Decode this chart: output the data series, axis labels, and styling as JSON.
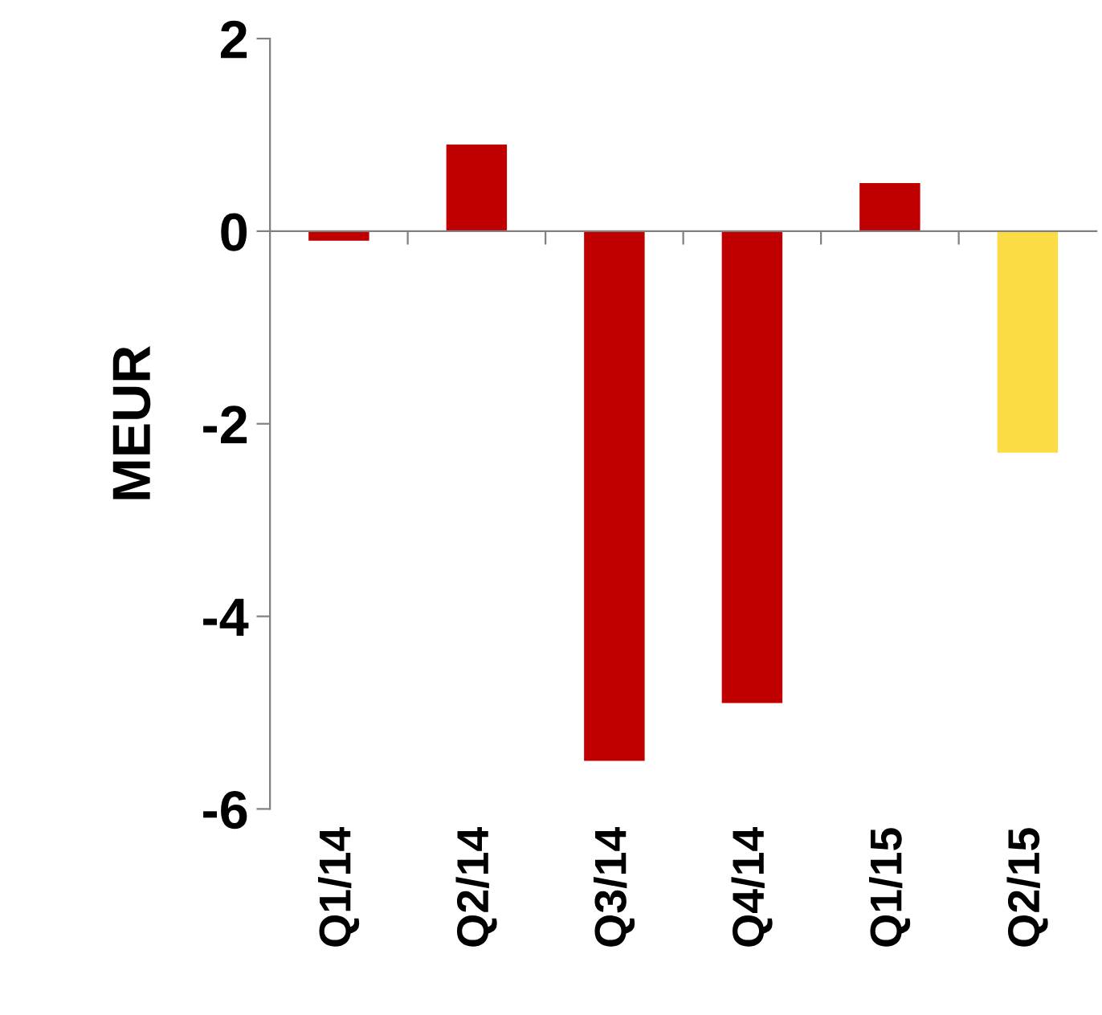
{
  "chart_data": {
    "type": "bar",
    "ylabel": "MEUR",
    "categories": [
      "Q1/14",
      "Q2/14",
      "Q3/14",
      "Q4/14",
      "Q1/15",
      "Q2/15"
    ],
    "values": [
      -0.1,
      0.9,
      -5.5,
      -4.9,
      0.5,
      -2.3
    ],
    "colors": [
      "#c00000",
      "#c00000",
      "#c00000",
      "#c00000",
      "#c00000",
      "#fbdc45"
    ],
    "ylim": [
      -6,
      2
    ],
    "yticks": [
      {
        "value": -6,
        "label": "-6"
      },
      {
        "value": -4,
        "label": "-4"
      },
      {
        "value": -2,
        "label": "-2"
      },
      0,
      2
    ],
    "legend": false
  }
}
